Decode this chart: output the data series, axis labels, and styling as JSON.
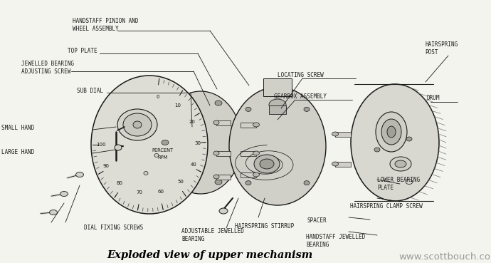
{
  "title": "Exploded view of upper mechanism",
  "watermark": "www.scottbouch.com",
  "bg_color": "#f5f5f0",
  "labels": {
    "handstaff_pinion": "HANDSTAFF PINION AND\nWHEEL ASSEMBLY",
    "top_plate": "TOP PLATE",
    "jewelled_bearing": "JEWELLED BEARING\nADJUSTING SCREW",
    "sub_dial": "SUB DIAL",
    "small_hand": "SMALL HAND",
    "large_hand": "LARGE HAND",
    "dial_fixing_screws": "DIAL FIXING SCREWS",
    "adjustable_jewelled": "ADJUSTABLE JEWELLED\nBEARING",
    "hairspring_stirrup": "HAIRSPRING STIRRUP",
    "locating_screw": "LOCATING SCREW",
    "gearbox_assembly": "GEARBOX ASSEMBLY",
    "lower_bearing_plate": "LOWER BEARING\nPLATE",
    "hairspring_clamp": "HAIRSPRING CLAMP SCREW",
    "spacer": "SPACER",
    "handstaff_jewelled": "HANDSTAFF JEWELLED\nBEARING",
    "hairspring_post": "HAIRSPRING\nPOST",
    "drum": "DRUM"
  },
  "line_color": "#1a1a1a",
  "fill_light": "#e8e8e2",
  "fill_mid": "#d0cfc8",
  "fill_dark": "#b8b7b0",
  "fill_darker": "#a0a098",
  "text_color": "#1a1a1a",
  "label_fontsize": 5.5,
  "title_fontsize": 10.5,
  "watermark_fontsize": 9.5,
  "dial_nums": [
    0,
    10,
    20,
    30,
    40,
    50,
    60,
    70,
    80,
    90,
    100
  ]
}
